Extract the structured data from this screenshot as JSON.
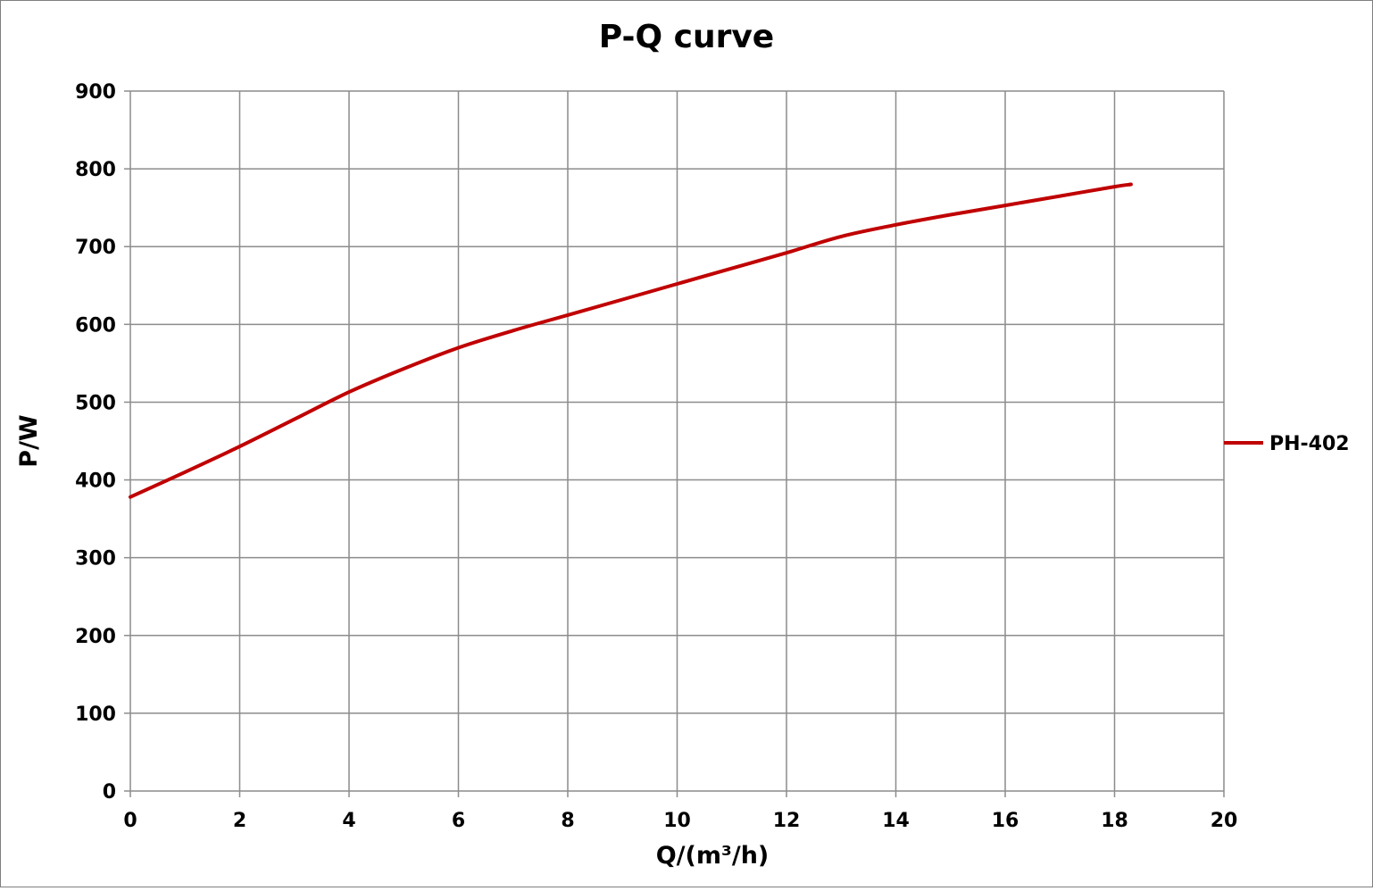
{
  "chart_data": {
    "type": "line",
    "title": "P-Q  curve",
    "xlabel": "Q/(m³/h)",
    "ylabel": "P/W",
    "xlim": [
      0,
      20
    ],
    "ylim": [
      0,
      900
    ],
    "x_ticks": [
      "0",
      "2",
      "4",
      "6",
      "8",
      "10",
      "12",
      "14",
      "16",
      "18",
      "20"
    ],
    "y_ticks": [
      "0",
      "100",
      "200",
      "300",
      "400",
      "500",
      "600",
      "700",
      "800",
      "900"
    ],
    "grid": true,
    "legend_position": "right",
    "series": [
      {
        "name": "PH-402",
        "color": "#c00000",
        "x": [
          0,
          1,
          2,
          3,
          4,
          5,
          6,
          7,
          8,
          9,
          10,
          11,
          12,
          13,
          14,
          15,
          16,
          17,
          18,
          18.3
        ],
        "y": [
          378,
          410,
          443,
          478,
          513,
          543,
          570,
          592,
          612,
          632,
          652,
          672,
          692,
          713,
          728,
          741,
          753,
          765,
          777,
          780
        ]
      }
    ]
  }
}
